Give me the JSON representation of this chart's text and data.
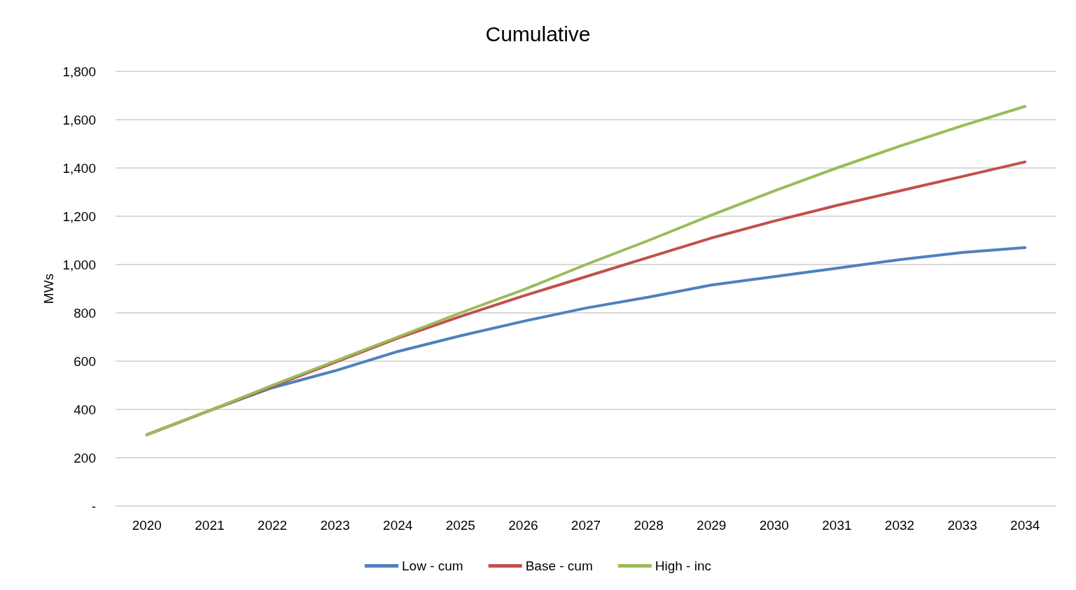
{
  "chart_data": {
    "type": "line",
    "title": "Cumulative",
    "ylabel": "MWs",
    "categories": [
      "2020",
      "2021",
      "2022",
      "2023",
      "2024",
      "2025",
      "2026",
      "2027",
      "2028",
      "2029",
      "2030",
      "2031",
      "2032",
      "2033",
      "2034"
    ],
    "series": [
      {
        "name": "Low - cum",
        "color": "#4f81bd",
        "values": [
          295,
          395,
          490,
          560,
          640,
          705,
          765,
          820,
          865,
          915,
          950,
          985,
          1020,
          1050,
          1070
        ]
      },
      {
        "name": "Base - cum",
        "color": "#c0504d",
        "values": [
          295,
          395,
          495,
          595,
          695,
          785,
          870,
          950,
          1030,
          1110,
          1180,
          1245,
          1305,
          1365,
          1425
        ]
      },
      {
        "name": "High - inc",
        "color": "#9bbb59",
        "values": [
          295,
          395,
          500,
          600,
          700,
          800,
          895,
          1000,
          1100,
          1205,
          1305,
          1400,
          1490,
          1575,
          1655
        ]
      }
    ],
    "ylim": [
      0,
      1800
    ],
    "yticks": [
      {
        "value": 0,
        "label": "-"
      },
      {
        "value": 200,
        "label": "200"
      },
      {
        "value": 400,
        "label": "400"
      },
      {
        "value": 600,
        "label": "600"
      },
      {
        "value": 800,
        "label": "800"
      },
      {
        "value": 1000,
        "label": "1,000"
      },
      {
        "value": 1200,
        "label": "1,200"
      },
      {
        "value": 1400,
        "label": "1,400"
      },
      {
        "value": 1600,
        "label": "1,600"
      },
      {
        "value": 1800,
        "label": "1,800"
      }
    ],
    "grid": "y",
    "legend": "bottom",
    "marker": "none",
    "line_style": "solid"
  }
}
